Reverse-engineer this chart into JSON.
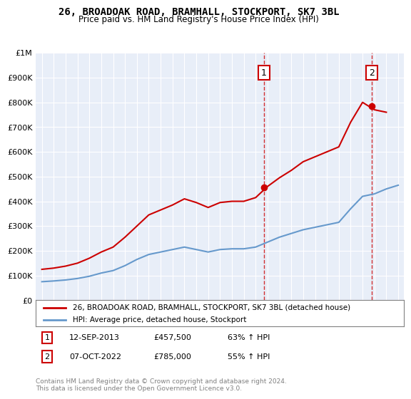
{
  "title": "26, BROADOAK ROAD, BRAMHALL, STOCKPORT, SK7 3BL",
  "subtitle": "Price paid vs. HM Land Registry's House Price Index (HPI)",
  "hpi_label": "HPI: Average price, detached house, Stockport",
  "property_label": "26, BROADOAK ROAD, BRAMHALL, STOCKPORT, SK7 3BL (detached house)",
  "footer": "Contains HM Land Registry data © Crown copyright and database right 2024.\nThis data is licensed under the Open Government Licence v3.0.",
  "annotation1_date": "12-SEP-2013",
  "annotation1_price": "£457,500",
  "annotation1_hpi": "63% ↑ HPI",
  "annotation1_year": 2013.7,
  "annotation1_value": 457500,
  "annotation2_date": "07-OCT-2022",
  "annotation2_price": "£785,000",
  "annotation2_hpi": "55% ↑ HPI",
  "annotation2_year": 2022.77,
  "annotation2_value": 785000,
  "property_color": "#cc0000",
  "hpi_color": "#6699cc",
  "background_color": "#e8eef8",
  "ylim": [
    0,
    1000000
  ],
  "yticks": [
    0,
    100000,
    200000,
    300000,
    400000,
    500000,
    600000,
    700000,
    800000,
    900000,
    1000000
  ],
  "ytick_labels": [
    "£0",
    "£100K",
    "£200K",
    "£300K",
    "£400K",
    "£500K",
    "£600K",
    "£700K",
    "£800K",
    "£900K",
    "£1M"
  ],
  "hpi_years": [
    1995,
    1996,
    1997,
    1998,
    1999,
    2000,
    2001,
    2002,
    2003,
    2004,
    2005,
    2006,
    2007,
    2008,
    2009,
    2010,
    2011,
    2012,
    2013,
    2014,
    2015,
    2016,
    2017,
    2018,
    2019,
    2020,
    2021,
    2022,
    2023,
    2024,
    2025
  ],
  "hpi_values": [
    75000,
    78000,
    82000,
    88000,
    97000,
    110000,
    120000,
    140000,
    165000,
    185000,
    195000,
    205000,
    215000,
    205000,
    195000,
    205000,
    208000,
    208000,
    215000,
    235000,
    255000,
    270000,
    285000,
    295000,
    305000,
    315000,
    370000,
    420000,
    430000,
    450000,
    465000
  ],
  "property_years": [
    1995,
    1996,
    1997,
    1998,
    1999,
    2000,
    2001,
    2002,
    2003,
    2004,
    2005,
    2006,
    2007,
    2008,
    2009,
    2010,
    2011,
    2012,
    2013,
    2014,
    2015,
    2016,
    2017,
    2018,
    2019,
    2020,
    2021,
    2022,
    2023,
    2024
  ],
  "property_values": [
    125000,
    130000,
    138000,
    150000,
    170000,
    195000,
    215000,
    255000,
    300000,
    345000,
    365000,
    385000,
    410000,
    395000,
    375000,
    395000,
    400000,
    400000,
    415000,
    460000,
    495000,
    525000,
    560000,
    580000,
    600000,
    620000,
    720000,
    800000,
    770000,
    760000
  ]
}
